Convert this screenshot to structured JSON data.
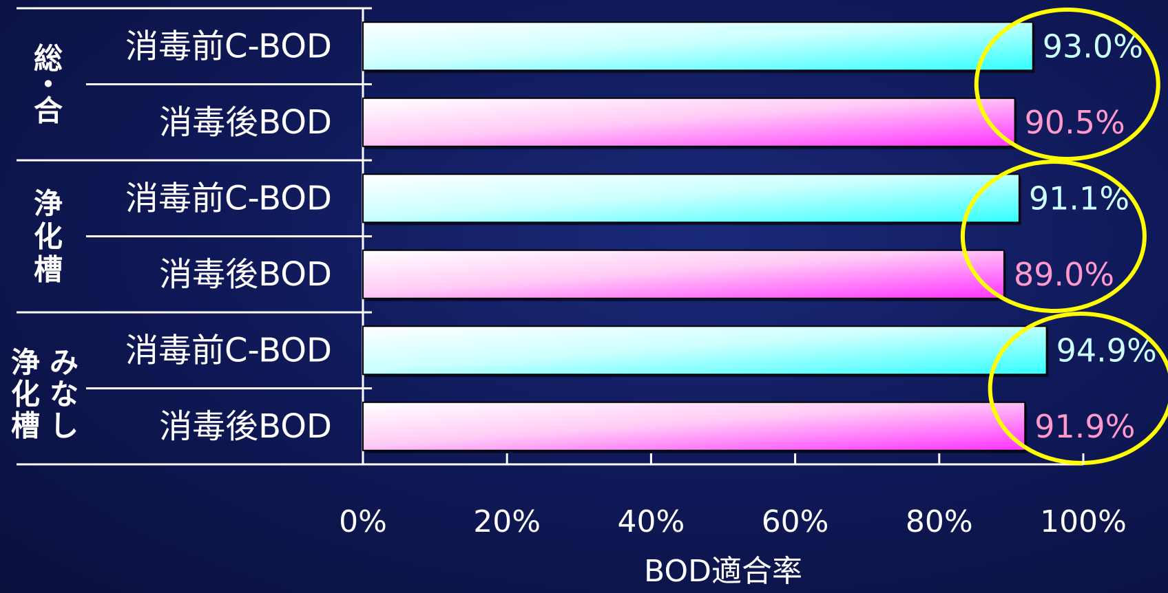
{
  "chart_data": {
    "type": "bar",
    "orientation": "horizontal",
    "groups": [
      {
        "label": "総合",
        "label_chars": [
          "総",
          "・",
          "合"
        ],
        "bars": [
          {
            "name": "消毒前C-BOD",
            "value": 93.0,
            "label": "93.0%",
            "style": "pre"
          },
          {
            "name": "消毒後BOD",
            "value": 90.5,
            "label": "90.5%",
            "style": "post"
          }
        ]
      },
      {
        "label": "浄化槽",
        "label_chars": [
          "浄",
          "化",
          "槽"
        ],
        "bars": [
          {
            "name": "消毒前C-BOD",
            "value": 91.1,
            "label": "91.1%",
            "style": "pre"
          },
          {
            "name": "消毒後BOD",
            "value": 89.0,
            "label": "89.0%",
            "style": "post"
          }
        ]
      },
      {
        "label": "みなし浄化槽",
        "label_columns": [
          [
            "み",
            "な",
            "し"
          ],
          [
            "浄",
            "化",
            "槽"
          ]
        ],
        "bars": [
          {
            "name": "消毒前C-BOD",
            "value": 94.9,
            "label": "94.9%",
            "style": "pre"
          },
          {
            "name": "消毒後BOD",
            "value": 91.9,
            "label": "91.9%",
            "style": "post"
          }
        ]
      }
    ],
    "xlabel": "BOD適合率",
    "xticks": [
      "0%",
      "20%",
      "40%",
      "60%",
      "80%",
      "100%"
    ],
    "xlim": [
      0,
      100
    ],
    "highlight": "yellow ellipses around each group's value labels",
    "colors": {
      "pre_fill": "#33ffff",
      "post_fill": "#ff33ff",
      "pre_label": "#ccffff",
      "post_label": "#ff99cc",
      "highlight": "#ffff00",
      "axis": "#ffffff"
    }
  }
}
